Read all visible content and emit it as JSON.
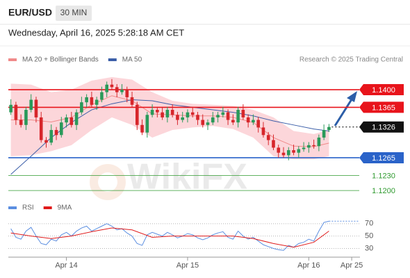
{
  "header": {
    "symbol": "EUR/USD",
    "timeframe": "30 MIN",
    "timestamp": "Wednesday, April 16, 2025 5:28:18 AM CET"
  },
  "chart_data": [
    {
      "type": "candlestick",
      "source": "Research © 2025 Trading Central",
      "watermark": "WikiFX",
      "xlim": [
        -0.5,
        69
      ],
      "ylim": [
        1.1185,
        1.144
      ],
      "up_color": "#2a9a5a",
      "down_color": "#d7262b",
      "open": [
        1.1355,
        1.137,
        1.134,
        1.133,
        1.136,
        1.138,
        1.1345,
        1.13,
        1.1295,
        1.132,
        1.131,
        1.1335,
        1.1345,
        1.133,
        1.1355,
        1.1375,
        1.1385,
        1.137,
        1.138,
        1.1395,
        1.141,
        1.1405,
        1.1395,
        1.14,
        1.1385,
        1.137,
        1.133,
        1.1315,
        1.135,
        1.136,
        1.1355,
        1.1345,
        1.136,
        1.135,
        1.134,
        1.1345,
        1.1355,
        1.135,
        1.134,
        1.133,
        1.1335,
        1.1345,
        1.135,
        1.1355,
        1.134,
        1.1335,
        1.136,
        1.1345,
        1.1335,
        1.134,
        1.1325,
        1.131,
        1.13,
        1.1285,
        1.1275,
        1.127,
        1.128,
        1.1275,
        1.1282,
        1.1285,
        1.129,
        1.1288,
        1.1305,
        1.132
      ],
      "high": [
        1.1381,
        1.1376,
        1.1351,
        1.1366,
        1.1391,
        1.1386,
        1.1356,
        1.1306,
        1.1331,
        1.1326,
        1.1346,
        1.1351,
        1.1356,
        1.1361,
        1.1386,
        1.1391,
        1.1396,
        1.1386,
        1.1406,
        1.1416,
        1.1421,
        1.1411,
        1.1411,
        1.1406,
        1.1396,
        1.1376,
        1.1341,
        1.1356,
        1.1371,
        1.1366,
        1.1366,
        1.1366,
        1.1371,
        1.1356,
        1.1356,
        1.1361,
        1.1366,
        1.1356,
        1.1351,
        1.1341,
        1.1356,
        1.1356,
        1.1366,
        1.1361,
        1.1351,
        1.1366,
        1.1371,
        1.1351,
        1.1351,
        1.1346,
        1.1336,
        1.1316,
        1.1311,
        1.1291,
        1.1286,
        1.1286,
        1.1291,
        1.1288,
        1.1296,
        1.1296,
        1.1301,
        1.1311,
        1.1331,
        1.1332
      ],
      "low": [
        1.135,
        1.133,
        1.1325,
        1.132,
        1.1355,
        1.1335,
        1.1295,
        1.1285,
        1.129,
        1.13,
        1.1305,
        1.1325,
        1.1325,
        1.132,
        1.135,
        1.1365,
        1.1365,
        1.136,
        1.1375,
        1.1385,
        1.14,
        1.1385,
        1.139,
        1.1375,
        1.1365,
        1.132,
        1.131,
        1.1305,
        1.1345,
        1.1345,
        1.134,
        1.1335,
        1.1345,
        1.133,
        1.1335,
        1.1335,
        1.1345,
        1.133,
        1.1325,
        1.132,
        1.133,
        1.1335,
        1.1345,
        1.133,
        1.133,
        1.1325,
        1.134,
        1.1325,
        1.133,
        1.1315,
        1.1305,
        1.129,
        1.128,
        1.1265,
        1.1265,
        1.126,
        1.127,
        1.1265,
        1.1277,
        1.1275,
        1.1283,
        1.1278,
        1.13,
        1.1316
      ],
      "close": [
        1.137,
        1.134,
        1.133,
        1.136,
        1.138,
        1.1345,
        1.13,
        1.1295,
        1.132,
        1.131,
        1.1335,
        1.1345,
        1.133,
        1.1355,
        1.1375,
        1.1385,
        1.137,
        1.138,
        1.1395,
        1.141,
        1.1405,
        1.1395,
        1.14,
        1.1385,
        1.137,
        1.133,
        1.1315,
        1.135,
        1.136,
        1.1355,
        1.1345,
        1.136,
        1.135,
        1.134,
        1.1345,
        1.1355,
        1.135,
        1.134,
        1.133,
        1.1335,
        1.1345,
        1.135,
        1.1355,
        1.134,
        1.1335,
        1.136,
        1.1345,
        1.1335,
        1.134,
        1.1325,
        1.131,
        1.13,
        1.1285,
        1.1275,
        1.127,
        1.128,
        1.1275,
        1.1282,
        1.1285,
        1.129,
        1.1288,
        1.1305,
        1.132,
        1.1326
      ],
      "series": [
        {
          "name": "MA 20 + Bollinger Bands",
          "color": "#f08a8a",
          "band_color": "#fcd6da",
          "x": [
            0,
            4,
            8,
            12,
            16,
            20,
            24,
            28,
            32,
            36,
            40,
            44,
            48,
            52,
            56,
            60,
            63
          ],
          "values": [
            1.134,
            1.134,
            1.1336,
            1.1345,
            1.137,
            1.1388,
            1.1378,
            1.1352,
            1.135,
            1.1348,
            1.1348,
            1.1345,
            1.1335,
            1.1305,
            1.1288,
            1.1287,
            1.1294
          ],
          "upper": [
            1.1412,
            1.141,
            1.1395,
            1.14,
            1.1418,
            1.1425,
            1.142,
            1.1395,
            1.1378,
            1.1372,
            1.137,
            1.1368,
            1.136,
            1.1345,
            1.1318,
            1.1312,
            1.132
          ],
          "lower": [
            1.1268,
            1.127,
            1.1278,
            1.129,
            1.132,
            1.1345,
            1.133,
            1.1305,
            1.132,
            1.1325,
            1.1328,
            1.1322,
            1.1305,
            1.1268,
            1.1262,
            1.1262,
            1.1268
          ]
        },
        {
          "name": "MA 50",
          "color": "#3b5ea8",
          "x": [
            0,
            4,
            8,
            12,
            16,
            20,
            24,
            28,
            32,
            36,
            40,
            44,
            48,
            52,
            56,
            60,
            63
          ],
          "values": [
            1.1232,
            1.1268,
            1.1305,
            1.1335,
            1.136,
            1.1372,
            1.138,
            1.1378,
            1.137,
            1.1365,
            1.136,
            1.1355,
            1.1348,
            1.1338,
            1.133,
            1.1322,
            1.1318
          ]
        }
      ],
      "levels": [
        {
          "value": 1.14,
          "label": "1.1400",
          "color": "#e8141b",
          "boxed": true,
          "dash": false
        },
        {
          "value": 1.1365,
          "label": "1.1365",
          "color": "#e8141b",
          "boxed": true,
          "dash": false
        },
        {
          "value": 1.1326,
          "label": "1.1326",
          "color": "#111111",
          "boxed": true,
          "dash": true
        },
        {
          "value": 1.1265,
          "label": "1.1265",
          "color": "#2a63c9",
          "boxed": true,
          "dash": false
        },
        {
          "value": 1.123,
          "label": "1.1230",
          "color": "#2f9a2f",
          "boxed": false,
          "dash": false
        },
        {
          "value": 1.12,
          "label": "1.1200",
          "color": "#2f9a2f",
          "boxed": false,
          "dash": false
        }
      ]
    },
    {
      "type": "line",
      "xlim": [
        -0.5,
        69
      ],
      "ylim": [
        16,
        81
      ],
      "yticks": [
        70,
        50,
        30
      ],
      "xticks": [
        {
          "value": 11,
          "label": "Apr 14"
        },
        {
          "value": 35,
          "label": "Apr 15"
        },
        {
          "value": 59,
          "label": "Apr 16"
        },
        {
          "value": 67.5,
          "label": "Apr 25"
        }
      ],
      "series": [
        {
          "name": "RSI",
          "color": "#5b8ee0",
          "values": [
            62,
            48,
            45,
            58,
            64,
            50,
            38,
            36,
            45,
            42,
            52,
            56,
            50,
            58,
            63,
            66,
            58,
            62,
            66,
            70,
            66,
            60,
            62,
            55,
            50,
            38,
            35,
            52,
            56,
            53,
            50,
            56,
            52,
            47,
            50,
            54,
            52,
            47,
            44,
            47,
            52,
            55,
            57,
            48,
            45,
            58,
            50,
            45,
            48,
            42,
            36,
            33,
            30,
            28,
            27,
            35,
            32,
            38,
            40,
            45,
            42,
            58,
            72,
            74
          ]
        },
        {
          "name": "9MA",
          "color": "#e01b1b",
          "x": [
            0,
            4,
            8,
            12,
            16,
            20,
            24,
            28,
            32,
            36,
            40,
            44,
            48,
            52,
            56,
            60,
            63
          ],
          "values": [
            55,
            50,
            46,
            50,
            57,
            63,
            60,
            48,
            50,
            50,
            50,
            50,
            46,
            38,
            32,
            40,
            58
          ]
        }
      ]
    }
  ]
}
